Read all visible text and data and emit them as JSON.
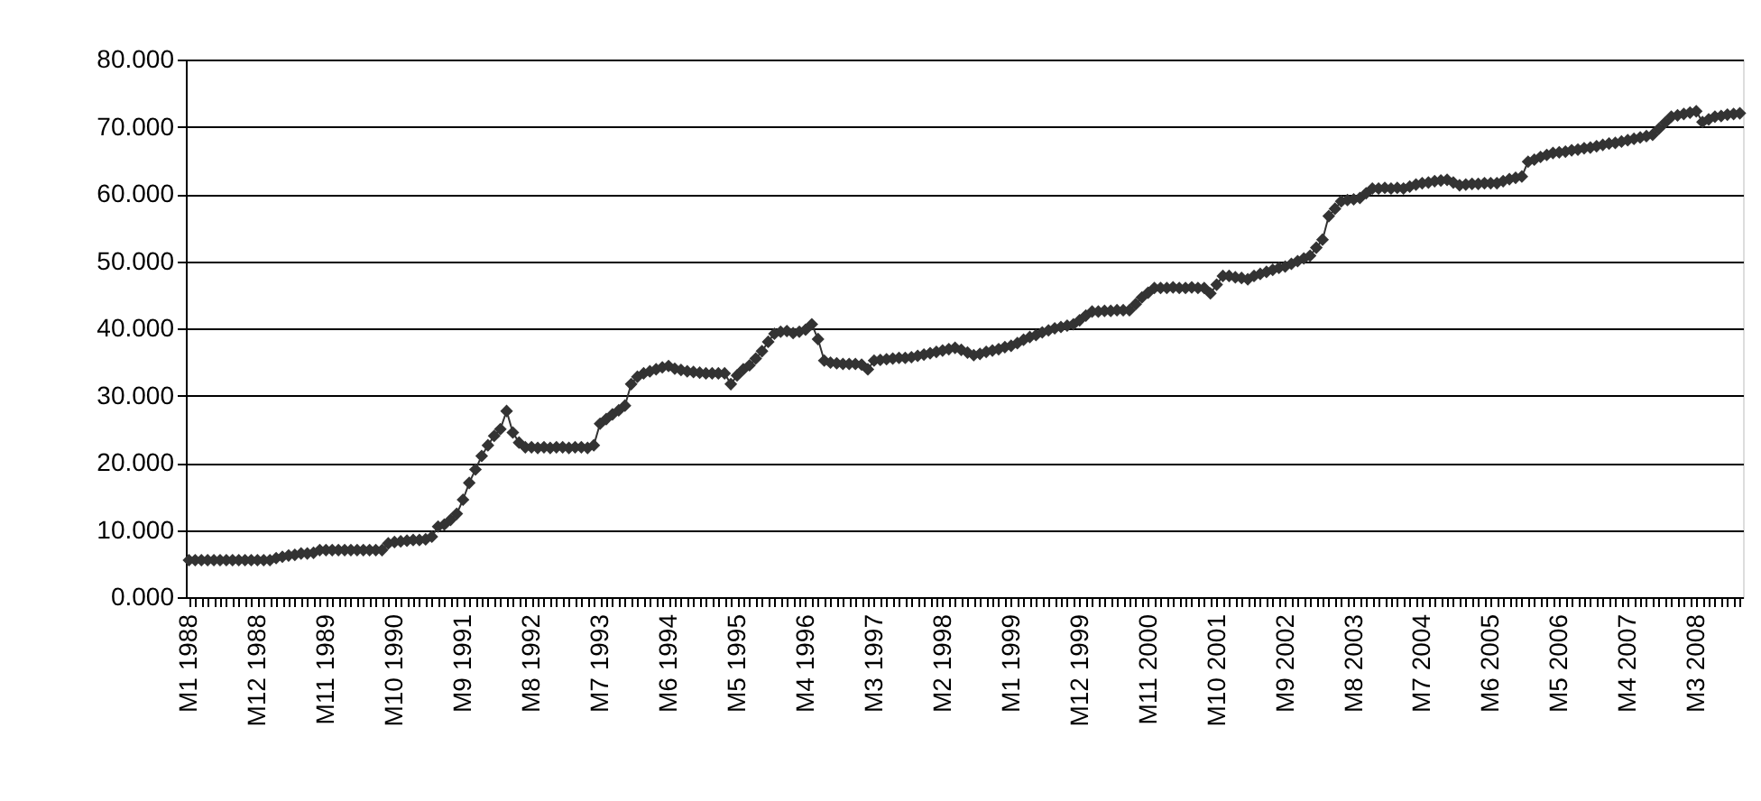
{
  "chart_data": {
    "type": "line",
    "categories": [
      "M1 1988",
      null,
      null,
      null,
      null,
      null,
      null,
      null,
      null,
      null,
      null,
      "M12 1988",
      null,
      null,
      null,
      null,
      null,
      null,
      null,
      null,
      null,
      null,
      "M11 1989",
      null,
      null,
      null,
      null,
      null,
      null,
      null,
      null,
      null,
      null,
      "M10 1990",
      null,
      null,
      null,
      null,
      null,
      null,
      null,
      null,
      null,
      null,
      "M9 1991",
      null,
      null,
      null,
      null,
      null,
      null,
      null,
      null,
      null,
      null,
      "M8 1992",
      null,
      null,
      null,
      null,
      null,
      null,
      null,
      null,
      null,
      null,
      "M7 1993",
      null,
      null,
      null,
      null,
      null,
      null,
      null,
      null,
      null,
      null,
      "M6 1994",
      null,
      null,
      null,
      null,
      null,
      null,
      null,
      null,
      null,
      null,
      "M5 1995",
      null,
      null,
      null,
      null,
      null,
      null,
      null,
      null,
      null,
      null,
      "M4 1996",
      null,
      null,
      null,
      null,
      null,
      null,
      null,
      null,
      null,
      null,
      "M3 1997",
      null,
      null,
      null,
      null,
      null,
      null,
      null,
      null,
      null,
      null,
      "M2 1998",
      null,
      null,
      null,
      null,
      null,
      null,
      null,
      null,
      null,
      null,
      "M1 1999",
      null,
      null,
      null,
      null,
      null,
      null,
      null,
      null,
      null,
      null,
      "M12 1999",
      null,
      null,
      null,
      null,
      null,
      null,
      null,
      null,
      null,
      null,
      "M11 2000",
      null,
      null,
      null,
      null,
      null,
      null,
      null,
      null,
      null,
      null,
      "M10 2001",
      null,
      null,
      null,
      null,
      null,
      null,
      null,
      null,
      null,
      null,
      "M9 2002",
      null,
      null,
      null,
      null,
      null,
      null,
      null,
      null,
      null,
      null,
      "M8 2003",
      null,
      null,
      null,
      null,
      null,
      null,
      null,
      null,
      null,
      null,
      "M7 2004",
      null,
      null,
      null,
      null,
      null,
      null,
      null,
      null,
      null,
      null,
      "M6 2005",
      null,
      null,
      null,
      null,
      null,
      null,
      null,
      null,
      null,
      null,
      "M5 2006",
      null,
      null,
      null,
      null,
      null,
      null,
      null,
      null,
      null,
      null,
      "M4 2007",
      null,
      null,
      null,
      null,
      null,
      null,
      null,
      null,
      null,
      null,
      "M3 2008",
      null,
      null,
      null,
      null,
      null,
      null,
      null
    ],
    "values": [
      5.5,
      5.5,
      5.5,
      5.5,
      5.5,
      5.5,
      5.5,
      5.5,
      5.5,
      5.5,
      5.5,
      5.5,
      5.5,
      5.5,
      5.8,
      6.0,
      6.2,
      6.3,
      6.5,
      6.5,
      6.6,
      7.0,
      7.0,
      7.0,
      7.0,
      7.0,
      7.0,
      7.0,
      7.0,
      7.0,
      7.0,
      7.0,
      8.0,
      8.2,
      8.3,
      8.4,
      8.5,
      8.5,
      8.6,
      9.0,
      10.5,
      10.8,
      11.5,
      12.4,
      14.5,
      17.0,
      19.0,
      21.0,
      22.6,
      24.0,
      25.0,
      27.7,
      24.5,
      23.0,
      22.3,
      22.3,
      22.2,
      22.3,
      22.2,
      22.3,
      22.3,
      22.2,
      22.3,
      22.3,
      22.2,
      22.6,
      25.8,
      26.5,
      27.2,
      27.8,
      28.5,
      31.7,
      32.8,
      33.3,
      33.6,
      33.9,
      34.2,
      34.4,
      34.0,
      33.8,
      33.6,
      33.5,
      33.4,
      33.3,
      33.3,
      33.3,
      33.3,
      31.7,
      33.0,
      33.9,
      34.5,
      35.5,
      36.6,
      38.0,
      39.2,
      39.5,
      39.6,
      39.3,
      39.5,
      39.8,
      40.6,
      38.4,
      35.2,
      34.9,
      34.8,
      34.7,
      34.7,
      34.7,
      34.6,
      33.9,
      35.2,
      35.3,
      35.4,
      35.5,
      35.6,
      35.6,
      35.7,
      35.9,
      36.1,
      36.3,
      36.5,
      36.7,
      36.9,
      37.1,
      36.8,
      36.4,
      36.0,
      36.2,
      36.5,
      36.7,
      36.9,
      37.2,
      37.4,
      37.8,
      38.3,
      38.7,
      39.0,
      39.4,
      39.7,
      40.0,
      40.2,
      40.4,
      40.6,
      41.2,
      41.9,
      42.5,
      42.5,
      42.6,
      42.6,
      42.7,
      42.7,
      42.7,
      43.6,
      44.6,
      45.3,
      46.0,
      46.0,
      46.0,
      46.1,
      46.0,
      46.0,
      46.1,
      46.0,
      46.0,
      45.2,
      46.5,
      47.8,
      47.8,
      47.6,
      47.5,
      47.3,
      47.8,
      48.1,
      48.4,
      48.7,
      49.0,
      49.2,
      49.6,
      50.0,
      50.4,
      50.8,
      52.0,
      53.2,
      56.7,
      57.8,
      58.9,
      59.1,
      59.2,
      59.4,
      60.1,
      60.8,
      60.8,
      60.9,
      60.8,
      60.9,
      60.8,
      61.1,
      61.4,
      61.6,
      61.7,
      61.9,
      62.0,
      62.1,
      61.7,
      61.3,
      61.4,
      61.5,
      61.5,
      61.6,
      61.6,
      61.6,
      61.9,
      62.2,
      62.4,
      62.6,
      64.8,
      65.1,
      65.5,
      65.8,
      66.1,
      66.2,
      66.3,
      66.5,
      66.6,
      66.8,
      66.9,
      67.1,
      67.3,
      67.5,
      67.6,
      67.8,
      68.0,
      68.2,
      68.4,
      68.6,
      68.8,
      69.7,
      70.6,
      71.5,
      71.7,
      71.9,
      72.1,
      72.3,
      70.7,
      71.1,
      71.5,
      71.6,
      71.8,
      71.9,
      72.0
    ],
    "color": "#333333",
    "marker": "diamond",
    "line_style": "solid",
    "ylim": [
      0,
      80
    ],
    "yticks": [
      {
        "value": 0,
        "label": "0.000"
      },
      {
        "value": 10,
        "label": "10.000"
      },
      {
        "value": 20,
        "label": "20.000"
      },
      {
        "value": 30,
        "label": "30.000"
      },
      {
        "value": 40,
        "label": "40.000"
      },
      {
        "value": 50,
        "label": "50.000"
      },
      {
        "value": 60,
        "label": "60.000"
      },
      {
        "value": 70,
        "label": "70.000"
      },
      {
        "value": 80,
        "label": "80.000"
      }
    ],
    "grid": "y"
  }
}
